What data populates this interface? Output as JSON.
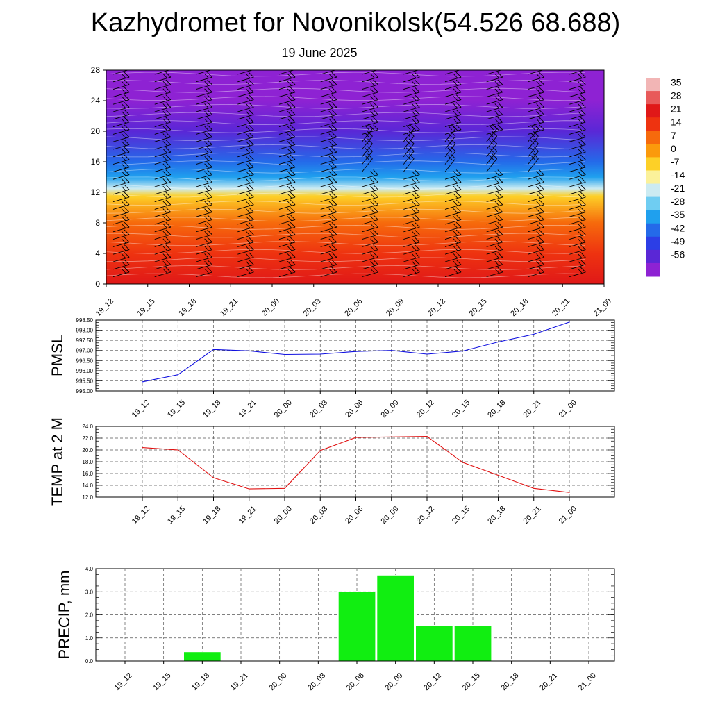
{
  "header": {
    "title": "Kazhydromet for Novonikolsk(54.526 68.688)",
    "date": "19 June 2025"
  },
  "chart_data": [
    {
      "type": "heatmap",
      "name": "temperature-wind-cross-section",
      "x_categories": [
        "19_12",
        "19_15",
        "19_18",
        "19_21",
        "20_00",
        "20_03",
        "20_06",
        "20_09",
        "20_12",
        "20_15",
        "20_18",
        "20_21",
        "21_00"
      ],
      "y_ticks": [
        0,
        4,
        8,
        12,
        16,
        20,
        24,
        28
      ],
      "ylim": [
        0,
        28
      ],
      "colorbar_labels": [
        "35",
        "28",
        "21",
        "14",
        "7",
        "0",
        "-7",
        "-14",
        "-21",
        "-28",
        "-35",
        "-42",
        "-49",
        "-56"
      ],
      "colorbar_colors": [
        "#f2b5b5",
        "#e85a5a",
        "#e01818",
        "#ee3310",
        "#f66a0c",
        "#fb9a0c",
        "#fdd027",
        "#fbf19a",
        "#ccebf2",
        "#6fcdf2",
        "#1fa0ee",
        "#246ae9",
        "#2c3ee6",
        "#5a27d6",
        "#8e22d3"
      ],
      "temperature_profile": [
        {
          "height": 0,
          "value": 28
        },
        {
          "height": 4,
          "value": 21
        },
        {
          "height": 8,
          "value": 10
        },
        {
          "height": 11.5,
          "value": 0
        },
        {
          "height": 12.5,
          "value": -14
        },
        {
          "height": 14,
          "value": -28
        },
        {
          "height": 16,
          "value": -40
        },
        {
          "height": 20,
          "value": -50
        },
        {
          "height": 24,
          "value": -56
        },
        {
          "height": 28,
          "value": -56
        }
      ]
    },
    {
      "type": "line",
      "name": "pmsl",
      "ylabel": "PMSL",
      "categories": [
        "19_12",
        "19_15",
        "19_18",
        "19_21",
        "20_00",
        "20_03",
        "20_06",
        "20_09",
        "20_12",
        "20_15",
        "20_18",
        "20_21",
        "21_00"
      ],
      "y_ticks": [
        "995.00",
        "995.50",
        "996.00",
        "996.50",
        "997.00",
        "997.50",
        "998.00",
        "998.50"
      ],
      "ylim": [
        995.0,
        998.5
      ],
      "color": "#1010e0",
      "values": [
        995.45,
        995.8,
        997.05,
        996.98,
        996.8,
        996.82,
        996.95,
        997.0,
        996.82,
        996.97,
        997.42,
        997.8,
        998.4
      ]
    },
    {
      "type": "line",
      "name": "temp-2m",
      "ylabel": "TEMP at 2 M",
      "categories": [
        "19_12",
        "19_15",
        "19_18",
        "19_21",
        "20_00",
        "20_03",
        "20_06",
        "20_09",
        "20_12",
        "20_15",
        "20_18",
        "20_21",
        "21_00"
      ],
      "y_ticks": [
        "12.0",
        "14.0",
        "16.0",
        "18.0",
        "20.0",
        "22.0",
        "24.0"
      ],
      "ylim": [
        12.0,
        24.0
      ],
      "color": "#e01010",
      "values": [
        20.4,
        20.0,
        15.3,
        13.4,
        13.5,
        19.9,
        22.1,
        22.2,
        22.3,
        17.9,
        15.7,
        13.5,
        12.8
      ]
    },
    {
      "type": "bar",
      "name": "precip",
      "ylabel": "PRECIP, mm",
      "categories": [
        "19_12",
        "19_15",
        "19_18",
        "19_21",
        "20_00",
        "20_03",
        "20_06",
        "20_09",
        "20_12",
        "20_15",
        "20_18",
        "20_21",
        "21_00"
      ],
      "y_ticks": [
        "0.0",
        "1.0",
        "2.0",
        "3.0",
        "4.0"
      ],
      "ylim": [
        0.0,
        4.0
      ],
      "color": "#11ee11",
      "values": [
        0.0,
        0.0,
        0.4,
        0.0,
        0.0,
        0.0,
        3.0,
        3.72,
        1.52,
        1.52,
        0.0,
        0.0,
        0.0
      ]
    }
  ]
}
